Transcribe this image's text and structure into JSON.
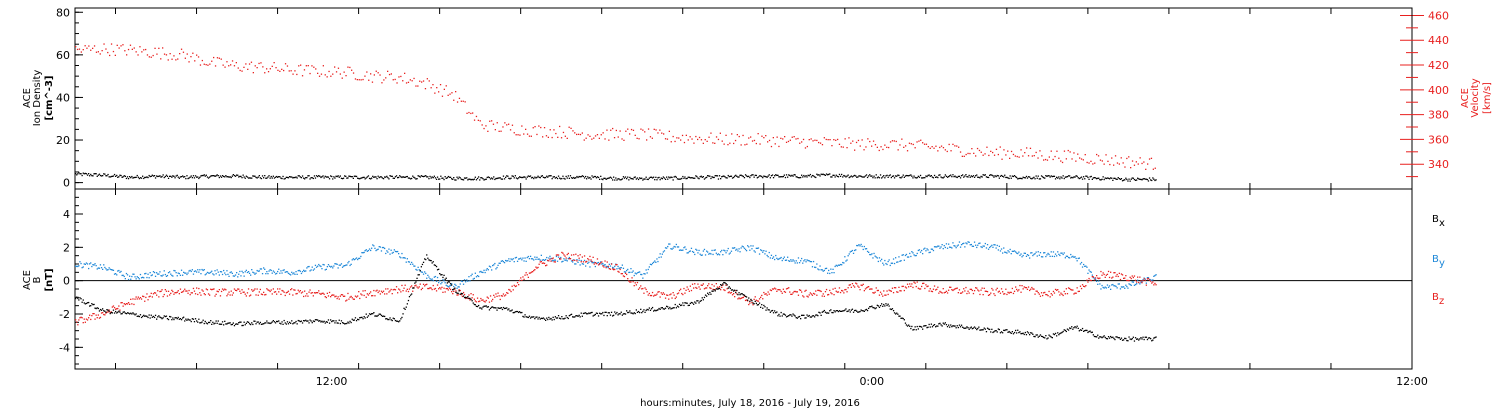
{
  "chart_data": [
    {
      "type": "scatter",
      "panel": "top",
      "left_axis": {
        "label_lines": [
          "ACE",
          "Ion Density",
          "[cm^-3]"
        ],
        "ylim": [
          -3,
          82
        ],
        "ticks": [
          0,
          20,
          40,
          60,
          80
        ],
        "tick_labels": [
          "0",
          "20",
          "40",
          "60",
          "80"
        ]
      },
      "right_axis": {
        "label_lines": [
          "ACE",
          "Velocity",
          "[km/s]"
        ],
        "ylim": [
          320,
          466
        ],
        "ticks": [
          340,
          360,
          380,
          400,
          420,
          440,
          460
        ],
        "tick_labels": [
          "340",
          "360",
          "380",
          "400",
          "420",
          "440",
          "460"
        ],
        "color": "#e8201f"
      },
      "series": [
        {
          "axis": "left",
          "color": "#000000",
          "x_hours": [
            0,
            1,
            2,
            3,
            4,
            5,
            6,
            7,
            8,
            9,
            10,
            11,
            12,
            13,
            14,
            15,
            16,
            17,
            18,
            19,
            20,
            21,
            22,
            23,
            24,
            25,
            26,
            27,
            28,
            29,
            30,
            31,
            32,
            33,
            34,
            35,
            36,
            37,
            38,
            39,
            40
          ],
          "values": [
            4,
            3.5,
            2.5,
            3,
            2.5,
            3,
            3,
            2.5,
            2.5,
            2.5,
            2.5,
            2.5,
            2.5,
            2.5,
            2,
            2,
            2.5,
            2.5,
            2.5,
            2.5,
            2,
            2,
            2,
            2.5,
            2.5,
            3,
            3,
            3,
            3.5,
            3,
            3,
            3,
            3,
            3,
            3,
            2.5,
            2.5,
            2.5,
            2,
            1.5,
            1.5
          ]
        },
        {
          "axis": "right",
          "color": "#e8201f",
          "x_hours": [
            0,
            1,
            2,
            3,
            4,
            5,
            6,
            7,
            8,
            9,
            10,
            11,
            12,
            13,
            14,
            15,
            16,
            17,
            18,
            19,
            20,
            21,
            22,
            23,
            24,
            25,
            26,
            27,
            28,
            29,
            30,
            31,
            32,
            33,
            34,
            35,
            36,
            37,
            38,
            39,
            40
          ],
          "values": [
            432,
            433,
            432,
            430,
            428,
            422,
            419,
            418,
            416,
            415,
            414,
            411,
            410,
            405,
            396,
            372,
            369,
            367,
            366,
            364,
            364,
            364,
            362,
            361,
            360,
            360,
            359,
            358,
            357,
            356,
            356,
            355,
            353,
            351,
            349,
            349,
            347,
            346,
            344,
            342,
            340
          ]
        }
      ]
    },
    {
      "type": "scatter",
      "panel": "bottom",
      "left_axis": {
        "label_lines": [
          "ACE",
          "B",
          "[nT]"
        ],
        "ylim": [
          -5.3,
          5.5
        ],
        "ticks": [
          -4,
          -2,
          0,
          2,
          4
        ],
        "tick_labels": [
          "-4",
          "-2",
          "0",
          "2",
          "4"
        ]
      },
      "legend_placement": "right",
      "series": [
        {
          "name": "Bx",
          "color": "#000000",
          "x_hours": [
            0,
            1,
            2,
            3,
            4,
            5,
            6,
            7,
            8,
            9,
            10,
            11,
            12,
            13,
            14,
            15,
            16,
            17,
            18,
            19,
            20,
            21,
            22,
            23,
            24,
            25,
            26,
            27,
            28,
            29,
            30,
            31,
            32,
            33,
            34,
            35,
            36,
            37,
            38,
            39,
            40
          ],
          "values": [
            -1,
            -1.8,
            -2,
            -2.2,
            -2.3,
            -2.5,
            -2.6,
            -2.5,
            -2.5,
            -2.4,
            -2.5,
            -2,
            -2.4,
            1.5,
            -0.5,
            -1.6,
            -1.7,
            -2.3,
            -2.2,
            -2,
            -2,
            -1.8,
            -1.6,
            -1.3,
            -0.2,
            -1.2,
            -2,
            -2.2,
            -1.8,
            -1.8,
            -1.4,
            -2.9,
            -2.6,
            -2.8,
            -3,
            -3.1,
            -3.4,
            -2.8,
            -3.4,
            -3.5,
            -3.5
          ]
        },
        {
          "name": "By",
          "color": "#1e88d8",
          "x_hours": [
            0,
            1,
            2,
            3,
            4,
            5,
            6,
            7,
            8,
            9,
            10,
            11,
            12,
            13,
            14,
            15,
            16,
            17,
            18,
            19,
            20,
            21,
            22,
            23,
            24,
            25,
            26,
            27,
            28,
            29,
            30,
            31,
            32,
            33,
            34,
            35,
            36,
            37,
            38,
            39,
            40
          ],
          "values": [
            1,
            0.8,
            0.2,
            0.4,
            0.5,
            0.5,
            0.4,
            0.6,
            0.5,
            0.8,
            0.9,
            2,
            1.6,
            0.3,
            -0.4,
            0.5,
            1.2,
            1.4,
            1.3,
            1,
            0.9,
            0.3,
            2.1,
            1.7,
            1.7,
            2,
            1.3,
            1.2,
            0.5,
            2.1,
            1,
            1.6,
            2,
            2.2,
            2,
            1.5,
            1.6,
            1.5,
            -0.4,
            -0.3,
            0.2
          ]
        },
        {
          "name": "Bz",
          "color": "#e8201f",
          "x_hours": [
            0,
            1,
            2,
            3,
            4,
            5,
            6,
            7,
            8,
            9,
            10,
            11,
            12,
            13,
            14,
            15,
            16,
            17,
            18,
            19,
            20,
            21,
            22,
            23,
            24,
            25,
            26,
            27,
            28,
            29,
            30,
            31,
            32,
            33,
            34,
            35,
            36,
            37,
            38,
            39,
            40
          ],
          "values": [
            -2.5,
            -2,
            -1.3,
            -0.8,
            -0.6,
            -0.7,
            -0.7,
            -0.7,
            -0.7,
            -0.8,
            -1,
            -0.7,
            -0.5,
            -0.4,
            -0.6,
            -1.2,
            -0.8,
            0.8,
            1.5,
            1.3,
            0.8,
            -0.6,
            -1,
            -0.3,
            -0.4,
            -1.3,
            -0.5,
            -0.8,
            -0.7,
            -0.3,
            -0.8,
            -0.2,
            -0.6,
            -0.6,
            -0.7,
            -0.5,
            -0.8,
            -0.6,
            0.4,
            0.2,
            -0.2
          ]
        }
      ]
    }
  ],
  "x_axis": {
    "xlim_hours": [
      0,
      49.5
    ],
    "ticks_hours": [
      9.5,
      29.5,
      49.5
    ],
    "tick_labels": [
      "12:00",
      "0:00",
      "12:00"
    ],
    "xlabel": "hours:minutes, July 18, 2016 - July 19, 2016"
  },
  "legend": {
    "bx_main": "B",
    "bx_sub": "x",
    "by_main": "B",
    "by_sub": "y",
    "bz_main": "B",
    "bz_sub": "z"
  },
  "colors": {
    "black": "#000000",
    "red": "#e8201f",
    "blue": "#1e88d8"
  }
}
